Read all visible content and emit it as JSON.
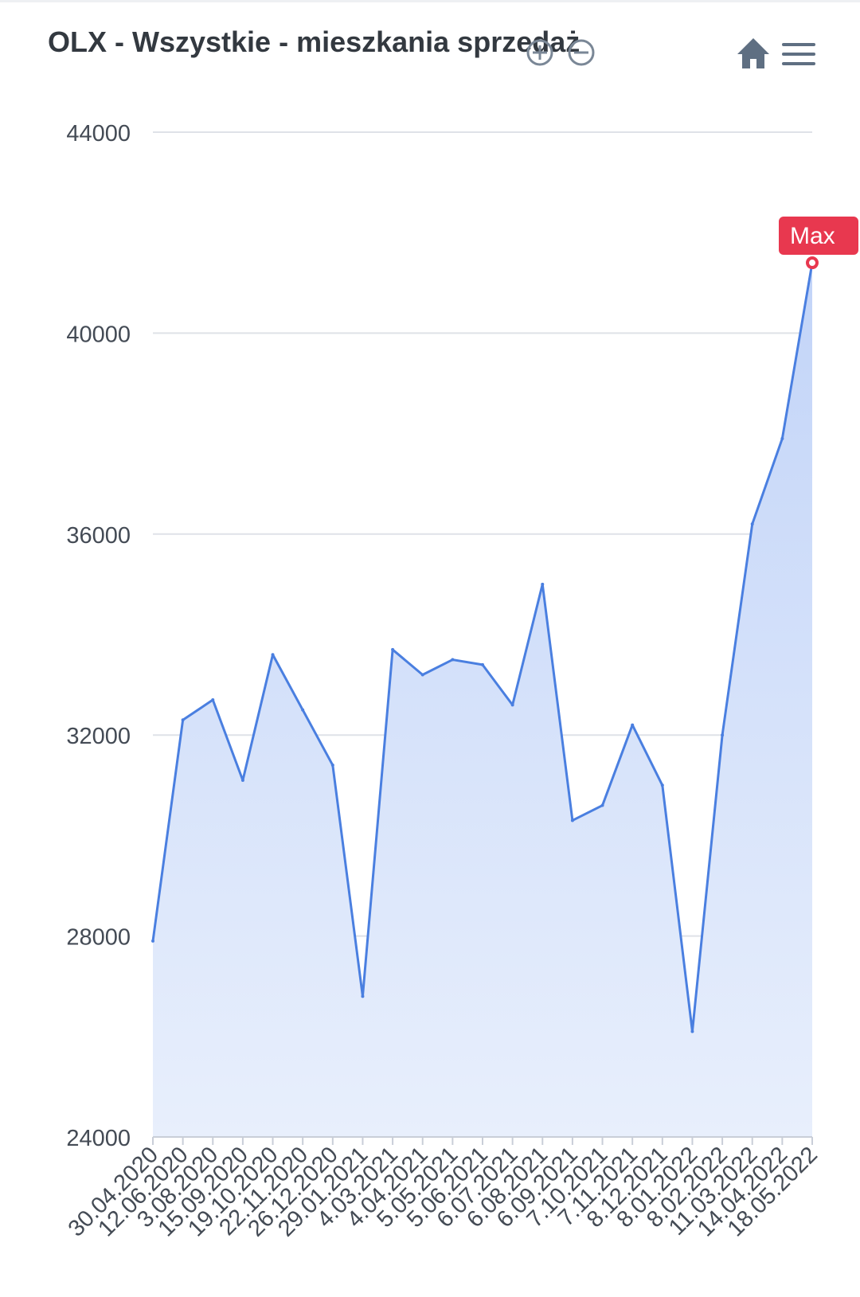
{
  "header": {
    "title": "OLX - Wszystkie - mieszkania sprzedaż",
    "icons": [
      "zoom-in-icon",
      "zoom-out-icon",
      "home-icon",
      "hamburger-menu-icon"
    ]
  },
  "chart_data": {
    "type": "area",
    "title": "OLX - Wszystkie - mieszkania sprzedaż",
    "xlabel": "",
    "ylabel": "",
    "ylim": [
      24000,
      44000
    ],
    "y_ticks": [
      24000,
      28000,
      32000,
      36000,
      40000,
      44000
    ],
    "x_tick_labels": [
      "30.04.2020",
      "12.06.2020",
      "3.08.2020",
      "15.09.2020",
      "19.10.2020",
      "22.11.2020",
      "26.12.2020",
      "29.01.2021",
      "4.03.2021",
      "4.04.2021",
      "5.05.2021",
      "5.06.2021",
      "6.07.2021",
      "6.08.2021",
      "6.09.2021",
      "7.10.2021",
      "7.11.2021",
      "8.12.2021",
      "8.01.2022",
      "8.02.2022",
      "11.03.2022",
      "14.04.2022",
      "18.05.2022"
    ],
    "grid": true,
    "colors": {
      "line": "#4a7fe0",
      "fill_top": "#c2d4f8",
      "fill_bottom": "#e8effc",
      "marker": "#e8384f"
    },
    "annotation": {
      "label": "Max",
      "value": 41400
    },
    "series": [
      {
        "x": [
          "30.04.2020",
          "12.06.2020",
          "3.08.2020",
          "15.09.2020",
          "19.10.2020",
          "22.11.2020",
          "26.12.2020",
          "29.01.2021",
          "4.03.2021",
          "4.04.2021",
          "5.05.2021",
          "5.06.2021",
          "6.07.2021",
          "6.08.2021",
          "6.09.2021",
          "7.10.2021",
          "7.11.2021",
          "8.12.2021",
          "8.01.2022",
          "8.02.2022",
          "11.03.2022",
          "14.04.2022",
          "18.05.2022"
        ],
        "values": [
          27900,
          32300,
          32700,
          31100,
          33600,
          32500,
          31400,
          26800,
          33700,
          33200,
          33500,
          33400,
          32600,
          35000,
          30300,
          30600,
          32200,
          31000,
          26100,
          32000,
          36200,
          37900,
          41400
        ]
      }
    ]
  }
}
